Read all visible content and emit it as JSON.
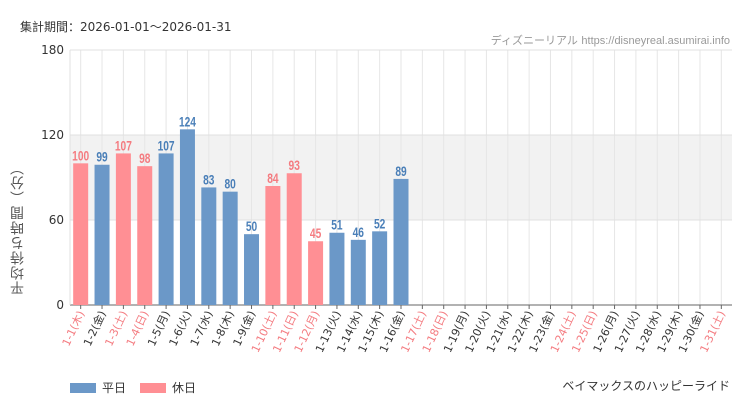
{
  "header": {
    "period": "集計期間：2026-01-01～2026-01-31",
    "source_name": "ディズニーリアル",
    "source_url": "https://disneyreal.asumirai.info"
  },
  "footer": {
    "attraction": "ベイマックスのハッピーライド"
  },
  "colors": {
    "weekday": "#6b98c8",
    "holiday": "#ff8f94",
    "weekday_text": "#4a7fb8",
    "holiday_text": "#f47b80",
    "band": "#f2f2f2"
  },
  "chart_data": {
    "type": "bar",
    "ylabel": "平均待ち時間（分）",
    "ylim": [
      0,
      180
    ],
    "yticks": [
      0,
      60,
      120,
      180
    ],
    "band": [
      60,
      120
    ],
    "legend": [
      "平日",
      "休日"
    ],
    "legend_position": "bottom-left",
    "categories": [
      "1-1(木)",
      "1-2(金)",
      "1-3(土)",
      "1-4(日)",
      "1-5(月)",
      "1-6(火)",
      "1-7(水)",
      "1-8(木)",
      "1-9(金)",
      "1-10(土)",
      "1-11(日)",
      "1-12(月)",
      "1-13(火)",
      "1-14(水)",
      "1-15(木)",
      "1-16(金)",
      "1-17(土)",
      "1-18(日)",
      "1-19(月)",
      "1-20(火)",
      "1-21(水)",
      "1-22(木)",
      "1-23(金)",
      "1-24(土)",
      "1-25(日)",
      "1-26(月)",
      "1-27(火)",
      "1-28(水)",
      "1-29(木)",
      "1-30(金)",
      "1-31(土)"
    ],
    "values": [
      100,
      99,
      107,
      98,
      107,
      124,
      83,
      80,
      50,
      84,
      93,
      45,
      51,
      46,
      52,
      89,
      null,
      null,
      null,
      null,
      null,
      null,
      null,
      null,
      null,
      null,
      null,
      null,
      null,
      null,
      null
    ],
    "day_type": [
      "休日",
      "平日",
      "休日",
      "休日",
      "平日",
      "平日",
      "平日",
      "平日",
      "平日",
      "休日",
      "休日",
      "休日",
      "平日",
      "平日",
      "平日",
      "平日",
      "休日",
      "休日",
      "平日",
      "平日",
      "平日",
      "平日",
      "平日",
      "休日",
      "休日",
      "平日",
      "平日",
      "平日",
      "平日",
      "平日",
      "休日"
    ]
  }
}
